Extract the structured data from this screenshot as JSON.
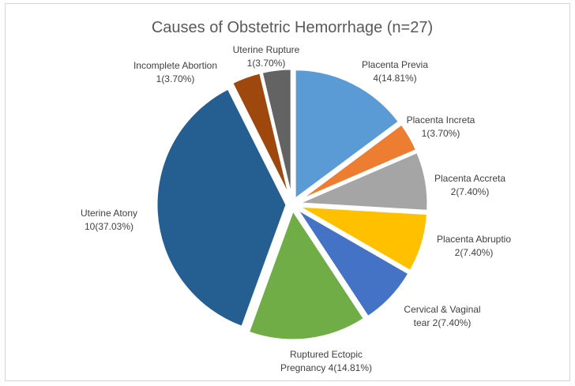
{
  "chart_data": {
    "type": "pie",
    "title": "Causes of Obstetric Hemorrhage (n=27)",
    "slices": [
      {
        "name": "Placenta Previa",
        "value": 4,
        "label_lines": [
          "Placenta Previa",
          "4(14.81%)"
        ],
        "color": "#5B9BD5"
      },
      {
        "name": "Placenta Increta",
        "value": 1,
        "label_lines": [
          "Placenta Increta",
          "1(3.70%)"
        ],
        "color": "#ED7D31"
      },
      {
        "name": "Placenta Accreta",
        "value": 2,
        "label_lines": [
          "Placenta Accreta",
          "2(7.40%)"
        ],
        "color": "#A5A5A5"
      },
      {
        "name": "Placenta Abruptio",
        "value": 2,
        "label_lines": [
          "Placenta Abruptio",
          "2(7.40%)"
        ],
        "color": "#FFC000"
      },
      {
        "name": "Cervical & Vaginal tear",
        "value": 2,
        "label_lines": [
          "Cervical & Vaginal",
          "tear 2(7.40%)"
        ],
        "color": "#4472C4"
      },
      {
        "name": "Ruptured Ectopic Pregnancy",
        "value": 4,
        "label_lines": [
          "Ruptured Ectopic",
          "Pregnancy 4(14.81%)"
        ],
        "color": "#70AD47"
      },
      {
        "name": "Uterine Atony",
        "value": 10,
        "label_lines": [
          "Uterine Atony",
          "10(37.03%)"
        ],
        "color": "#255E91"
      },
      {
        "name": "Incomplete Abortion",
        "value": 1,
        "label_lines": [
          "Incomplete Abortion",
          "1(3.70%)"
        ],
        "color": "#9E480E"
      },
      {
        "name": "Uterine Rupture",
        "value": 1,
        "label_lines": [
          "Uterine Rupture",
          "1(3.70%)"
        ],
        "color": "#636363"
      }
    ],
    "start_angle": "top",
    "direction": "clockwise",
    "legend": "none",
    "exploded": true
  }
}
